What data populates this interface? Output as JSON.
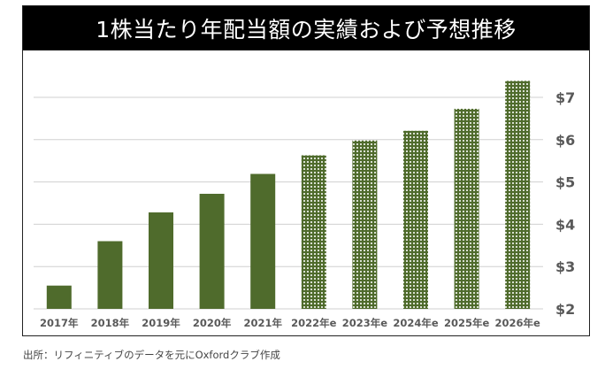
{
  "source_note": "出所：リフィニティブのデータを元にOxfordクラブ作成",
  "chart_data": {
    "type": "bar",
    "title": "1株当たり年配当額の実績および予想推移",
    "xlabel": "",
    "ylabel": "",
    "categories": [
      "2017年",
      "2018年",
      "2019年",
      "2020年",
      "2021年",
      "2022年e",
      "2023年e",
      "2024年e",
      "2025年e",
      "2026年e"
    ],
    "values": [
      2.55,
      3.6,
      4.28,
      4.72,
      5.19,
      5.63,
      5.98,
      6.21,
      6.73,
      7.39
    ],
    "estimated": [
      false,
      false,
      false,
      false,
      false,
      true,
      true,
      true,
      true,
      true
    ],
    "ylim": [
      2,
      7.5
    ],
    "y_ticks": [
      2,
      3,
      4,
      5,
      6,
      7
    ],
    "y_tick_labels": [
      "$2",
      "$3",
      "$4",
      "$5",
      "$6",
      "$7"
    ],
    "y_axis_position": "right",
    "grid": true,
    "colors": {
      "actual": "#4f6b2c",
      "estimate_fill": "#4f6b2c",
      "estimate_dot": "#ffffff",
      "grid": "#d0d0d0"
    }
  }
}
